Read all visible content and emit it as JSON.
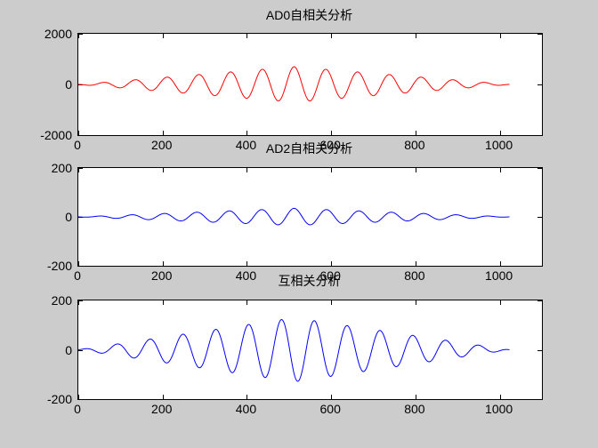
{
  "window": {
    "background_color": "#cccccc",
    "plot_background_color": "#ffffff",
    "axis_color": "#000000",
    "text_color": "#000000"
  },
  "chart_data": [
    {
      "type": "line",
      "title": "AD0自相关分析",
      "line_color": "#ff0000",
      "xlim": [
        0,
        1100
      ],
      "ylim": [
        -2000,
        2000
      ],
      "xticks": [
        0,
        200,
        400,
        600,
        800,
        1000
      ],
      "yticks": [
        -2000,
        0,
        2000
      ],
      "grid": false,
      "legend": null,
      "signal": {
        "description": "autocorrelation of AD0 channel: amplitude-modulated cosine, triangular envelope",
        "n_points": 1024,
        "peak_amplitude": 700,
        "envelope": "triangular",
        "envelope_center": 512,
        "carrier_period_samples": 75.4,
        "carrier_center": 512,
        "polarity": 1
      }
    },
    {
      "type": "line",
      "title": "AD2自相关分析",
      "line_color": "#0000ff",
      "xlim": [
        0,
        1100
      ],
      "ylim": [
        -200,
        200
      ],
      "xticks": [
        0,
        200,
        400,
        600,
        800,
        1000
      ],
      "yticks": [
        -200,
        0,
        200
      ],
      "grid": false,
      "legend": null,
      "signal": {
        "description": "autocorrelation of AD2 channel: amplitude-modulated cosine, triangular envelope",
        "n_points": 1024,
        "peak_amplitude": 35,
        "envelope": "triangular",
        "envelope_center": 512,
        "carrier_period_samples": 77,
        "carrier_center": 512,
        "polarity": 1
      }
    },
    {
      "type": "line",
      "title": "互相关分析",
      "line_color": "#0000ff",
      "xlim": [
        0,
        1100
      ],
      "ylim": [
        -200,
        200
      ],
      "xticks": [
        0,
        200,
        400,
        600,
        800,
        1000
      ],
      "yticks": [
        -200,
        0,
        200
      ],
      "grid": false,
      "legend": null,
      "signal": {
        "description": "cross-correlation of AD0 and AD2: amplitude-modulated cosine, triangular envelope, trough at center",
        "n_points": 1024,
        "peak_amplitude": 130,
        "envelope": "triangular",
        "envelope_center": 512,
        "carrier_period_samples": 78,
        "carrier_center": 521,
        "polarity": -1
      }
    }
  ]
}
